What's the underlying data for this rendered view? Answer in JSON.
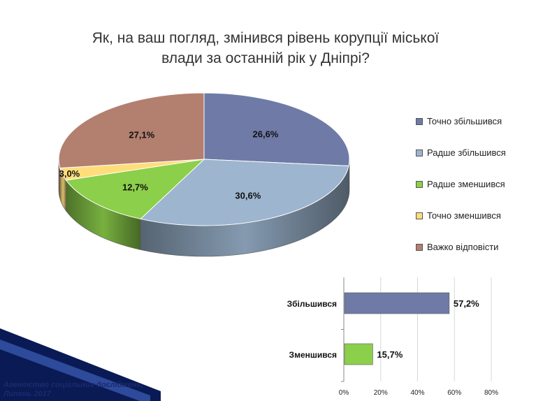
{
  "title_lines": [
    "Як, на ваш погляд, змінився рівень корупції міської",
    "влади за останній рік у Дніпрі?"
  ],
  "footer_lines": [
    "Агентство соціальних досліджень,",
    "Липень 2017"
  ],
  "chart_data": [
    {
      "type": "pie",
      "title": "Як, на ваш погляд, змінився рівень корупції міської влади за останній рік у Дніпрі?",
      "three_d": true,
      "legend_position": "right",
      "categories": [
        "Точно збільшився",
        "Радше збільшився",
        "Радше зменшився",
        "Точно зменшився",
        "Важко відповісти"
      ],
      "values": [
        26.6,
        30.6,
        12.7,
        3.0,
        27.1
      ],
      "labels": [
        "26,6%",
        "30,6%",
        "12,7%",
        "3,0%",
        "27,1%"
      ],
      "colors": [
        "#6f7ba6",
        "#9db5cf",
        "#8ccf4a",
        "#ffdd7a",
        "#b37f6f"
      ]
    },
    {
      "type": "bar",
      "orientation": "horizontal",
      "categories": [
        "Збільшився",
        "Зменшився"
      ],
      "values": [
        57.2,
        15.7
      ],
      "labels": [
        "57,2%",
        "15,7%"
      ],
      "colors": [
        "#6f7ba6",
        "#8ccf4a"
      ],
      "xlim": [
        0,
        80
      ],
      "ticks": [
        0,
        20,
        40,
        60,
        80
      ],
      "tick_labels": [
        "0%",
        "20%",
        "40%",
        "60%",
        "80%"
      ],
      "grid": true
    }
  ]
}
